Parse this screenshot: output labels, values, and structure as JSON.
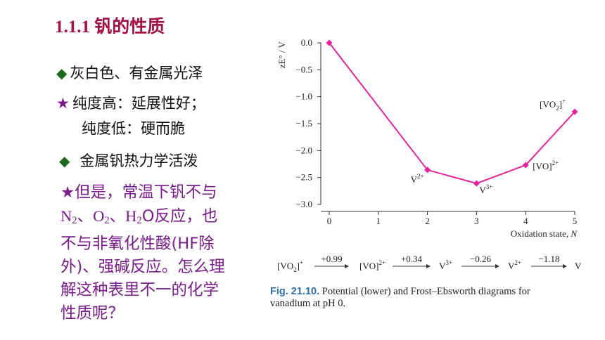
{
  "slide": {
    "title": "1.1.1   钒的性质",
    "bullets": [
      {
        "marker": "◆",
        "text": "灰白色、有金属光泽"
      },
      {
        "marker": "★",
        "text": "纯度高：延展性好；"
      },
      {
        "marker": "",
        "text": "纯度低：硬而脆"
      },
      {
        "marker": "◆",
        "text": "金属钒热力学活泼"
      }
    ],
    "note": {
      "line1": "★但是，常温下钒不与",
      "line2_a": "N",
      "line2_a_sub": "2",
      "line2_b": "、O",
      "line2_b_sub": "2",
      "line2_c": "、H",
      "line2_c_sub": "2",
      "line2_d": "O反应，也",
      "line3": "不与非氧化性酸(HF除",
      "line4": "外)、强碱反应。怎么理",
      "line5": "解这种表里不一的化学",
      "line6": "性质呢？"
    }
  },
  "chart_data": {
    "type": "line",
    "x": [
      0,
      1,
      2,
      3,
      4,
      5
    ],
    "series": [
      {
        "x": [
          0,
          2,
          3,
          4,
          5
        ],
        "values": [
          0.0,
          -2.36,
          -2.61,
          -2.27,
          -1.28
        ],
        "color": "#e8219a"
      }
    ],
    "point_labels": [
      {
        "x": 2,
        "text": "V",
        "sup": "2+"
      },
      {
        "x": 3,
        "text": "V",
        "sup": "3+"
      },
      {
        "x": 4,
        "text": "[VO]",
        "sup": "2+"
      },
      {
        "x": 5,
        "text": "[VO",
        "sub": "2",
        "tail": "]",
        "sup": "+"
      }
    ],
    "xlabel": "Oxidation state, N",
    "ylabel": "zE° / V",
    "xlim": [
      0,
      5
    ],
    "ylim": [
      -3.0,
      0.0
    ],
    "yticks": [
      "0.0",
      "−0.5",
      "−1.0",
      "−1.5",
      "−2.0",
      "−2.5",
      "−3.0"
    ],
    "xticks": [
      "0",
      "1",
      "2",
      "3",
      "4",
      "5"
    ],
    "grid": false
  },
  "latimer": {
    "species": [
      "[VO2]+",
      "[VO]2+",
      "V3+",
      "V2+",
      "V"
    ],
    "potentials": [
      "+0.99",
      "+0.34",
      "−0.26",
      "−1.18"
    ]
  },
  "caption": {
    "label": "Fig. 21.10.",
    "text1": "Potential (lower) and Frost–Ebsworth diagrams for",
    "text2": "vanadium at pH 0."
  }
}
